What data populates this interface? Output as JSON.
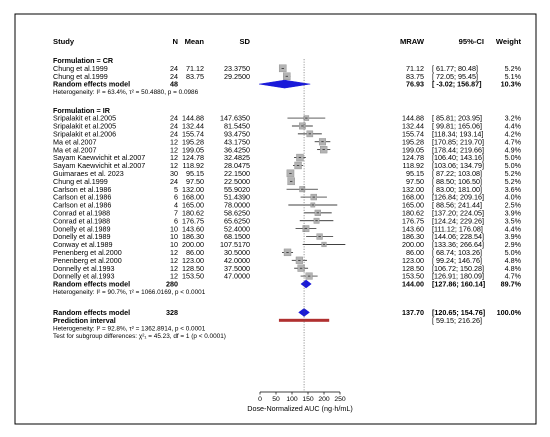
{
  "chart_data": {
    "type": "forest",
    "headers": {
      "study": "Study",
      "n": "N",
      "mean": "Mean",
      "sd": "SD",
      "est": "MRAW",
      "ci": "95%-CI",
      "weight": "Weight"
    },
    "xlim": [
      0,
      250
    ],
    "ticks": [
      "0",
      "50",
      "100",
      "150",
      "200",
      "250"
    ],
    "reference_line": 137.7,
    "xlabel": "Dose-Normalized AUC (ng·h/mL)",
    "groups": [
      {
        "title": "Formulation = CR",
        "rows": [
          {
            "study": "Chung et al.1999",
            "n": "24",
            "mean": "71.12",
            "sd": "23.3750",
            "est": 71.12,
            "lo": 61.77,
            "hi": 80.48,
            "est_text": "71.12",
            "ci_text": "[ 61.77;  80.48]",
            "weight": "5.2%"
          },
          {
            "study": "Chung et al.1999",
            "n": "24",
            "mean": "83.75",
            "sd": "29.2500",
            "est": 83.75,
            "lo": 72.05,
            "hi": 95.45,
            "est_text": "83.75",
            "ci_text": "[ 72.05;  95.45]",
            "weight": "5.1%"
          }
        ],
        "summary": {
          "label": "Random effects model",
          "n": "48",
          "est": 76.93,
          "lo": -3.02,
          "hi": 156.87,
          "est_text": "76.93",
          "ci_text": "[ -3.02; 156.87]",
          "weight": "10.3%"
        },
        "heterogeneity": "Heterogeneity: I² = 63.4%, τ² = 50.4880, p = 0.0986"
      },
      {
        "title": "Formulation = IR",
        "rows": [
          {
            "study": "Sripalakit et al.2005",
            "n": "24",
            "mean": "144.88",
            "sd": "147.6350",
            "est": 144.88,
            "lo": 85.81,
            "hi": 203.95,
            "est_text": "144.88",
            "ci_text": "[ 85.81; 203.95]",
            "weight": "3.2%"
          },
          {
            "study": "Sripalakit et al.2005",
            "n": "24",
            "mean": "132.44",
            "sd": "81.5450",
            "est": 132.44,
            "lo": 99.81,
            "hi": 165.06,
            "est_text": "132.44",
            "ci_text": "[ 99.81; 165.06]",
            "weight": "4.4%"
          },
          {
            "study": "Sripalakit et al.2006",
            "n": "24",
            "mean": "155.74",
            "sd": "93.4750",
            "est": 155.74,
            "lo": 118.34,
            "hi": 193.14,
            "est_text": "155.74",
            "ci_text": "[118.34; 193.14]",
            "weight": "4.2%"
          },
          {
            "study": "Ma et al.2007",
            "n": "12",
            "mean": "195.28",
            "sd": "43.1750",
            "est": 195.28,
            "lo": 170.85,
            "hi": 219.7,
            "est_text": "195.28",
            "ci_text": "[170.85; 219.70]",
            "weight": "4.7%"
          },
          {
            "study": "Ma et al.2007",
            "n": "12",
            "mean": "199.05",
            "sd": "36.4250",
            "est": 199.05,
            "lo": 178.44,
            "hi": 219.66,
            "est_text": "199.05",
            "ci_text": "[178.44; 219.66]",
            "weight": "4.9%"
          },
          {
            "study": "Sayam Kaewvichit et al.2007",
            "n": "12",
            "mean": "124.78",
            "sd": "32.4825",
            "est": 124.78,
            "lo": 106.4,
            "hi": 143.16,
            "est_text": "124.78",
            "ci_text": "[106.40; 143.16]",
            "weight": "5.0%"
          },
          {
            "study": "Sayam Kaewvichit et al.2007",
            "n": "12",
            "mean": "118.92",
            "sd": "28.0475",
            "est": 118.92,
            "lo": 103.06,
            "hi": 134.79,
            "est_text": "118.92",
            "ci_text": "[103.06; 134.79]",
            "weight": "5.0%"
          },
          {
            "study": "Guimaraes et al. 2023",
            "n": "30",
            "mean": "95.15",
            "sd": "22.1500",
            "est": 95.15,
            "lo": 87.22,
            "hi": 103.08,
            "est_text": "95.15",
            "ci_text": "[ 87.22; 103.08]",
            "weight": "5.2%"
          },
          {
            "study": "Chung et al.1999",
            "n": "24",
            "mean": "97.50",
            "sd": "22.5000",
            "est": 97.5,
            "lo": 88.5,
            "hi": 106.5,
            "est_text": "97.50",
            "ci_text": "[ 88.50; 106.50]",
            "weight": "5.2%"
          },
          {
            "study": "Carlson et al.1986",
            "n": "5",
            "mean": "132.00",
            "sd": "55.9020",
            "est": 132.0,
            "lo": 83.0,
            "hi": 181.0,
            "est_text": "132.00",
            "ci_text": "[ 83.00; 181.00]",
            "weight": "3.6%"
          },
          {
            "study": "Carlson et al.1986",
            "n": "6",
            "mean": "168.00",
            "sd": "51.4390",
            "est": 168.0,
            "lo": 126.84,
            "hi": 209.16,
            "est_text": "168.00",
            "ci_text": "[126.84; 209.16]",
            "weight": "4.0%"
          },
          {
            "study": "Carlson et al.1986",
            "n": "4",
            "mean": "165.00",
            "sd": "78.0000",
            "est": 165.0,
            "lo": 88.56,
            "hi": 241.44,
            "est_text": "165.00",
            "ci_text": "[ 88.56; 241.44]",
            "weight": "2.5%"
          },
          {
            "study": "Conrad et al.1988",
            "n": "7",
            "mean": "180.62",
            "sd": "58.6250",
            "est": 180.62,
            "lo": 137.2,
            "hi": 224.05,
            "est_text": "180.62",
            "ci_text": "[137.20; 224.05]",
            "weight": "3.9%"
          },
          {
            "study": "Conrad et al.1988",
            "n": "6",
            "mean": "176.75",
            "sd": "65.6250",
            "est": 176.75,
            "lo": 124.24,
            "hi": 229.26,
            "est_text": "176.75",
            "ci_text": "[124.24; 229.26]",
            "weight": "3.5%"
          },
          {
            "study": "Donelly et al.1989",
            "n": "10",
            "mean": "143.60",
            "sd": "52.4000",
            "est": 143.6,
            "lo": 111.12,
            "hi": 176.08,
            "est_text": "143.60",
            "ci_text": "[111.12; 176.08]",
            "weight": "4.4%"
          },
          {
            "study": "Donelly et al.1989",
            "n": "10",
            "mean": "186.30",
            "sd": "68.1500",
            "est": 186.3,
            "lo": 144.06,
            "hi": 228.54,
            "est_text": "186.30",
            "ci_text": "[144.06; 228.54]",
            "weight": "3.9%"
          },
          {
            "study": "Conway et al.1989",
            "n": "10",
            "mean": "200.00",
            "sd": "107.5170",
            "est": 200.0,
            "lo": 133.36,
            "hi": 266.64,
            "est_text": "200.00",
            "ci_text": "[133.36; 266.64]",
            "weight": "2.9%"
          },
          {
            "study": "Penenberg et al.2000",
            "n": "12",
            "mean": "86.00",
            "sd": "30.5000",
            "est": 86.0,
            "lo": 68.74,
            "hi": 103.26,
            "est_text": "86.00",
            "ci_text": "[ 68.74; 103.26]",
            "weight": "5.0%"
          },
          {
            "study": "Penenberg et al.2000",
            "n": "12",
            "mean": "123.00",
            "sd": "42.0000",
            "est": 123.0,
            "lo": 99.24,
            "hi": 146.76,
            "est_text": "123.00",
            "ci_text": "[ 99.24; 146.76]",
            "weight": "4.8%"
          },
          {
            "study": "Donnelly et al.1993",
            "n": "12",
            "mean": "128.50",
            "sd": "37.5000",
            "est": 128.5,
            "lo": 106.72,
            "hi": 150.28,
            "est_text": "128.50",
            "ci_text": "[106.72; 150.28]",
            "weight": "4.8%"
          },
          {
            "study": "Donnelly et al.1993",
            "n": "12",
            "mean": "153.50",
            "sd": "47.0000",
            "est": 153.5,
            "lo": 126.91,
            "hi": 180.09,
            "est_text": "153.50",
            "ci_text": "[126.91; 180.09]",
            "weight": "4.7%"
          }
        ],
        "summary": {
          "label": "Random effects model",
          "n": "280",
          "est": 144.0,
          "lo": 127.86,
          "hi": 160.14,
          "est_text": "144.00",
          "ci_text": "[127.86; 160.14]",
          "weight": "89.7%"
        },
        "heterogeneity": "Heterogeneity: I² = 90.7%, τ² = 1066.0169, p < 0.0001"
      }
    ],
    "overall": {
      "label": "Random effects model",
      "n": "328",
      "est": 137.7,
      "lo": 120.65,
      "hi": 154.76,
      "est_text": "137.70",
      "ci_text": "[120.65; 154.76]",
      "weight": "100.0%"
    },
    "prediction": {
      "label": "Prediction interval",
      "lo": 59.15,
      "hi": 216.26,
      "ci_text": "[ 59.15; 216.26]"
    },
    "overall_heterogeneity": "Heterogeneity: I² = 92.8%, τ² = 1362.8914, p < 0.0001",
    "subgroup_test": "Test for subgroup differences: χ²₁ = 45.23, df = 1 (p < 0.0001)",
    "colors": {
      "square": "#b3b3b3",
      "diamond": "#1a1ad9",
      "prediction": "#b03030",
      "border": "#000000"
    }
  }
}
